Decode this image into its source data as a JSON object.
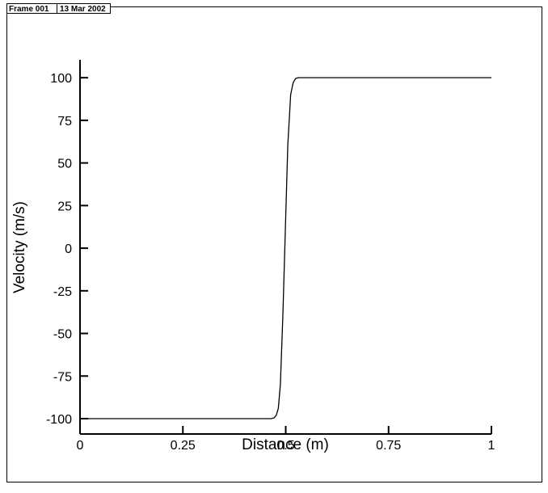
{
  "header": {
    "frame": "Frame 001",
    "date": "13 Mar 2002"
  },
  "chart_data": {
    "type": "line",
    "x_label": "Distance (m)",
    "y_label": "Velocity (m/s)",
    "xlim": [
      0,
      1
    ],
    "xticks": [
      0,
      0.25,
      0.5,
      0.75,
      1
    ],
    "ylim": [
      -109,
      110.5
    ],
    "yticks": [
      -100,
      -75,
      -50,
      -25,
      0,
      25,
      50,
      75,
      100
    ],
    "series": [
      {
        "color": "#000000",
        "x": [
          0,
          0.465,
          0.472,
          0.477,
          0.482,
          0.487,
          0.493,
          0.499,
          0.505,
          0.512,
          0.518,
          0.524,
          0.53,
          1
        ],
        "values": [
          -100,
          -100,
          -99.5,
          -98,
          -94,
          -80,
          -40,
          10,
          60,
          90,
          97,
          99.5,
          100,
          100
        ]
      }
    ]
  }
}
